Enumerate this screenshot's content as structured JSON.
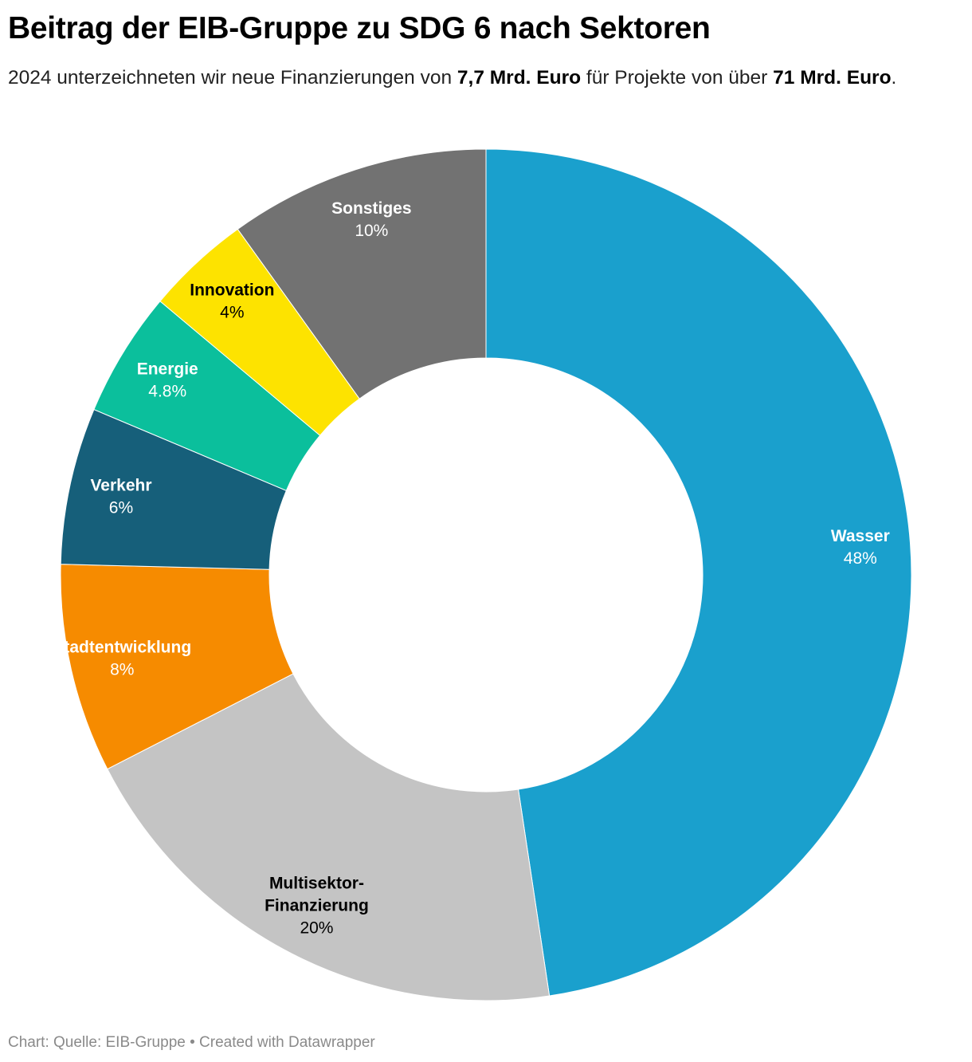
{
  "title": "Beitrag der EIB-Gruppe zu SDG 6 nach Sektoren",
  "subtitle": {
    "part1": "2024 unterzeichneten wir neue Finanzierungen von ",
    "amount1": "7,7 Mrd. Euro",
    "part2": " für Projekte von über ",
    "amount2": "71 Mrd. Euro",
    "part3": "."
  },
  "footer": {
    "source": "Chart: Quelle: EIB-Gruppe",
    "separator": " • ",
    "credit": "Created with Datawrapper"
  },
  "chart_data": {
    "type": "pie",
    "variant": "donut",
    "title": "Beitrag der EIB-Gruppe zu SDG 6 nach Sektoren",
    "unit": "%",
    "start": "12 o'clock, clockwise",
    "slices": [
      {
        "label": "Wasser",
        "value": 48,
        "value_label": "48%",
        "color": "#1aa0cd",
        "label_color": "#ffffff"
      },
      {
        "label": "Multisektor-Finanzierung",
        "label_lines": [
          "Multisektor-",
          "Finanzierung"
        ],
        "value": 20,
        "value_label": "20%",
        "color": "#c4c4c4",
        "label_color": "#000000"
      },
      {
        "label": "Stadtentwicklung",
        "value": 8,
        "value_label": "8%",
        "color": "#f68b00",
        "label_color": "#ffffff"
      },
      {
        "label": "Verkehr",
        "value": 6,
        "value_label": "6%",
        "color": "#165f7a",
        "label_color": "#ffffff"
      },
      {
        "label": "Energie",
        "value": 4.8,
        "value_label": "4.8%",
        "color": "#0bbf9c",
        "label_color": "#ffffff"
      },
      {
        "label": "Innovation",
        "value": 4,
        "value_label": "4%",
        "color": "#fde300",
        "label_color": "#000000"
      },
      {
        "label": "Sonstiges",
        "value": 10,
        "value_label": "10%",
        "color": "#727272",
        "label_color": "#ffffff"
      }
    ]
  }
}
